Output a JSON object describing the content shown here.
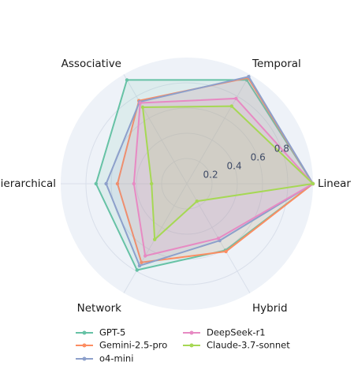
{
  "chart_data": {
    "type": "radar",
    "axes": [
      "Linear",
      "Temporal",
      "Associative",
      "Hierarchical",
      "Network",
      "Hybrid"
    ],
    "radial_range": [
      0,
      1
    ],
    "ticks": [
      0.2,
      0.4,
      0.6,
      0.8
    ],
    "tick_labels": [
      "0.2",
      "0.4",
      "0.6",
      "0.8"
    ],
    "grid": true,
    "legend_placement": "bottom",
    "series": [
      {
        "name": "GPT-5",
        "color": "#66c2a5",
        "values": [
          1.0,
          0.95,
          0.95,
          0.72,
          0.79,
          0.61
        ]
      },
      {
        "name": "Gemini-2.5-pro",
        "color": "#fc8d62",
        "values": [
          1.0,
          0.97,
          0.76,
          0.55,
          0.72,
          0.62
        ]
      },
      {
        "name": "o4-mini",
        "color": "#8da0cb",
        "values": [
          1.0,
          0.98,
          0.75,
          0.64,
          0.75,
          0.52
        ]
      },
      {
        "name": "DeepSeek-r1",
        "color": "#e78ac3",
        "values": [
          1.0,
          0.78,
          0.74,
          0.42,
          0.66,
          0.5
        ]
      },
      {
        "name": "Claude-3.7-sonnet",
        "color": "#a6d854",
        "values": [
          1.0,
          0.71,
          0.7,
          0.28,
          0.51,
          0.16
        ]
      }
    ]
  }
}
